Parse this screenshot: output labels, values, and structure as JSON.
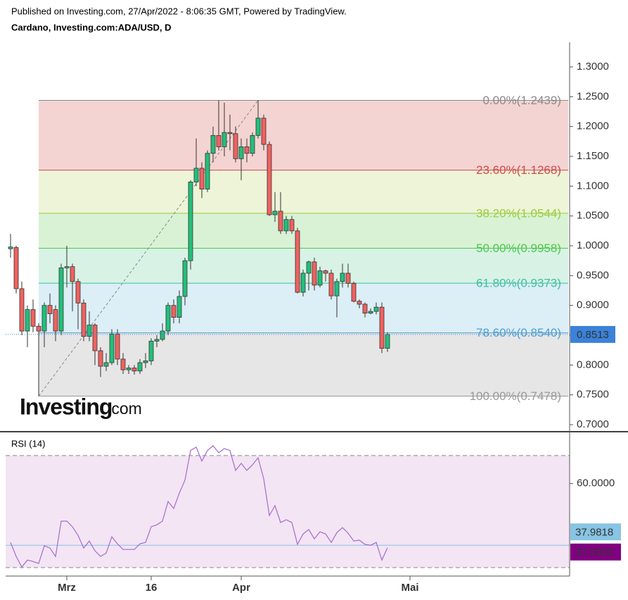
{
  "header": {
    "published": "Published on Investing.com, 27/Apr/2022 - 8:06:35 GMT, Powered by TradingView.",
    "symbol": "Cardano, Investing.com:ADA/USD, D"
  },
  "watermark": {
    "brand": "Investing",
    "suffix": ".com"
  },
  "chart_data": [
    {
      "type": "candlestick",
      "x": [
        "2022-02-19",
        "2022-02-20",
        "2022-02-21",
        "2022-02-22",
        "2022-02-23",
        "2022-02-24",
        "2022-02-25",
        "2022-02-26",
        "2022-02-27",
        "2022-02-28",
        "2022-03-01",
        "2022-03-02",
        "2022-03-03",
        "2022-03-04",
        "2022-03-05",
        "2022-03-06",
        "2022-03-07",
        "2022-03-08",
        "2022-03-09",
        "2022-03-10",
        "2022-03-11",
        "2022-03-12",
        "2022-03-13",
        "2022-03-14",
        "2022-03-15",
        "2022-03-16",
        "2022-03-17",
        "2022-03-18",
        "2022-03-19",
        "2022-03-20",
        "2022-03-21",
        "2022-03-22",
        "2022-03-23",
        "2022-03-24",
        "2022-03-25",
        "2022-03-26",
        "2022-03-27",
        "2022-03-28",
        "2022-03-29",
        "2022-03-30",
        "2022-03-31",
        "2022-04-01",
        "2022-04-02",
        "2022-04-03",
        "2022-04-04",
        "2022-04-05",
        "2022-04-06",
        "2022-04-07",
        "2022-04-08",
        "2022-04-09",
        "2022-04-10",
        "2022-04-11",
        "2022-04-12",
        "2022-04-13",
        "2022-04-14",
        "2022-04-15",
        "2022-04-16",
        "2022-04-17",
        "2022-04-18",
        "2022-04-19",
        "2022-04-20",
        "2022-04-21",
        "2022-04-22",
        "2022-04-23",
        "2022-04-24",
        "2022-04-25",
        "2022-04-26",
        "2022-04-27"
      ],
      "open": [
        0.995,
        0.997,
        0.928,
        0.857,
        0.893,
        0.865,
        0.857,
        0.9,
        0.893,
        0.857,
        0.963,
        0.965,
        0.94,
        0.904,
        0.848,
        0.867,
        0.824,
        0.798,
        0.804,
        0.852,
        0.81,
        0.792,
        0.795,
        0.79,
        0.804,
        0.807,
        0.84,
        0.843,
        0.857,
        0.9,
        0.88,
        0.915,
        0.975,
        1.107,
        1.13,
        1.095,
        1.155,
        1.185,
        1.166,
        1.19,
        1.188,
        1.146,
        1.166,
        1.155,
        1.185,
        1.214,
        1.17,
        1.052,
        1.058,
        1.025,
        1.044,
        1.025,
        0.922,
        0.954,
        0.973,
        0.934,
        0.958,
        0.954,
        0.916,
        0.94,
        0.954,
        0.937,
        0.907,
        0.902,
        0.887,
        0.89,
        0.897,
        0.828
      ],
      "high": [
        1.02,
        1.0,
        0.94,
        0.9,
        0.91,
        0.87,
        0.905,
        0.92,
        0.9,
        0.97,
        1.0,
        0.97,
        0.945,
        0.91,
        0.89,
        0.87,
        0.83,
        0.82,
        0.86,
        0.86,
        0.82,
        0.8,
        0.8,
        0.81,
        0.82,
        0.845,
        0.85,
        0.87,
        0.905,
        0.91,
        0.925,
        0.98,
        1.11,
        1.18,
        1.14,
        1.16,
        1.2,
        1.2439,
        1.24,
        1.22,
        1.2,
        1.18,
        1.18,
        1.19,
        1.2439,
        1.22,
        1.175,
        1.09,
        1.09,
        1.05,
        1.05,
        1.03,
        0.96,
        0.975,
        0.98,
        0.965,
        0.96,
        0.96,
        0.945,
        0.97,
        0.97,
        0.94,
        0.91,
        0.905,
        0.895,
        0.905,
        0.905,
        0.855
      ],
      "low": [
        0.98,
        0.92,
        0.85,
        0.83,
        0.855,
        0.7478,
        0.83,
        0.87,
        0.84,
        0.85,
        0.93,
        0.89,
        0.86,
        0.84,
        0.84,
        0.8,
        0.78,
        0.79,
        0.8,
        0.8,
        0.785,
        0.785,
        0.784,
        0.785,
        0.795,
        0.8,
        0.83,
        0.84,
        0.85,
        0.87,
        0.87,
        0.9,
        0.96,
        1.1,
        1.08,
        1.09,
        1.14,
        1.16,
        1.15,
        1.16,
        1.14,
        1.11,
        1.14,
        1.15,
        1.18,
        1.16,
        1.05,
        1.04,
        1.02,
        1.02,
        1.02,
        0.92,
        0.915,
        0.925,
        0.925,
        0.93,
        0.94,
        0.91,
        0.88,
        0.93,
        0.93,
        0.905,
        0.895,
        0.88,
        0.885,
        0.885,
        0.82,
        0.822
      ],
      "close": [
        0.998,
        0.928,
        0.857,
        0.893,
        0.865,
        0.857,
        0.9,
        0.886,
        0.857,
        0.963,
        0.965,
        0.94,
        0.904,
        0.848,
        0.867,
        0.824,
        0.798,
        0.804,
        0.852,
        0.81,
        0.792,
        0.795,
        0.79,
        0.804,
        0.807,
        0.84,
        0.843,
        0.857,
        0.9,
        0.88,
        0.915,
        0.975,
        1.107,
        1.13,
        1.095,
        1.155,
        1.185,
        1.166,
        1.19,
        1.188,
        1.146,
        1.166,
        1.155,
        1.185,
        1.214,
        1.17,
        1.052,
        1.058,
        1.025,
        1.044,
        1.025,
        0.922,
        0.954,
        0.973,
        0.934,
        0.958,
        0.954,
        0.916,
        0.94,
        0.954,
        0.937,
        0.907,
        0.902,
        0.887,
        0.89,
        0.897,
        0.828,
        0.8513
      ],
      "up_color": "#22c07a",
      "down_color": "#f0625f",
      "xlim": [
        "2022-02-18",
        "2022-05-29"
      ],
      "ylim": [
        0.6894,
        1.3413
      ],
      "yticks": [
        {
          "value": 0.7,
          "label": "0.7000"
        },
        {
          "value": 0.75,
          "label": "0.7500"
        },
        {
          "value": 0.8,
          "label": "0.8000"
        },
        {
          "value": 0.85,
          "label": "0.8500"
        },
        {
          "value": 0.9,
          "label": "0.9000"
        },
        {
          "value": 0.95,
          "label": "0.9500"
        },
        {
          "value": 1.0,
          "label": "1.0000"
        },
        {
          "value": 1.05,
          "label": "1.0500"
        },
        {
          "value": 1.1,
          "label": "1.1000"
        },
        {
          "value": 1.15,
          "label": "1.1500"
        },
        {
          "value": 1.2,
          "label": "1.2000"
        },
        {
          "value": 1.25,
          "label": "1.2500"
        },
        {
          "value": 1.3,
          "label": "1.3000"
        }
      ],
      "last_price": 0.8513,
      "last_price_color": "#3b82d8",
      "trendline": {
        "from": [
          "2022-02-24",
          0.7478
        ],
        "to": [
          "2022-04-04",
          1.2439
        ],
        "color": "#888888"
      },
      "fib_levels": [
        {
          "label": "0.00%(1.2439)",
          "value": 1.2439,
          "color": "#8a8a8a"
        },
        {
          "label": "23.60%(1.1268)",
          "value": 1.1268,
          "color": "#d24a4a",
          "fill": "#f4d4d2"
        },
        {
          "label": "38.20%(1.0544)",
          "value": 1.0544,
          "color": "#9ccc3c",
          "fill": "#eef4d8"
        },
        {
          "label": "50.00%(0.9958)",
          "value": 0.9958,
          "color": "#4cc94c",
          "fill": "#d9f2d5"
        },
        {
          "label": "61.80%(0.9373)",
          "value": 0.9373,
          "color": "#3fbf9f",
          "fill": "#d8f3e6"
        },
        {
          "label": "78.60%(0.8540)",
          "value": 0.854,
          "color": "#4f9fd0",
          "fill": "#dceef6"
        },
        {
          "label": "100.00%(0.7478)",
          "value": 0.7478,
          "color": "#999999",
          "fill": "#e6e6e6"
        }
      ]
    },
    {
      "type": "line",
      "title": "RSI (14)",
      "x": [
        "2022-02-19",
        "2022-02-20",
        "2022-02-21",
        "2022-02-22",
        "2022-02-23",
        "2022-02-24",
        "2022-02-25",
        "2022-02-26",
        "2022-02-27",
        "2022-02-28",
        "2022-03-01",
        "2022-03-02",
        "2022-03-03",
        "2022-03-04",
        "2022-03-05",
        "2022-03-06",
        "2022-03-07",
        "2022-03-08",
        "2022-03-09",
        "2022-03-10",
        "2022-03-11",
        "2022-03-12",
        "2022-03-13",
        "2022-03-14",
        "2022-03-15",
        "2022-03-16",
        "2022-03-17",
        "2022-03-18",
        "2022-03-19",
        "2022-03-20",
        "2022-03-21",
        "2022-03-22",
        "2022-03-23",
        "2022-03-24",
        "2022-03-25",
        "2022-03-26",
        "2022-03-27",
        "2022-03-28",
        "2022-03-29",
        "2022-03-30",
        "2022-03-31",
        "2022-04-01",
        "2022-04-02",
        "2022-04-03",
        "2022-04-04",
        "2022-04-05",
        "2022-04-06",
        "2022-04-07",
        "2022-04-08",
        "2022-04-09",
        "2022-04-10",
        "2022-04-11",
        "2022-04-12",
        "2022-04-13",
        "2022-04-14",
        "2022-04-15",
        "2022-04-16",
        "2022-04-17",
        "2022-04-18",
        "2022-04-19",
        "2022-04-20",
        "2022-04-21",
        "2022-04-22",
        "2022-04-23",
        "2022-04-24",
        "2022-04-25",
        "2022-04-26",
        "2022-04-27"
      ],
      "values": [
        39,
        34,
        30.2,
        32.7,
        32.2,
        31.5,
        37.8,
        37,
        34,
        46.6,
        46.6,
        44.6,
        41.5,
        37,
        39.5,
        36,
        34,
        35.2,
        41,
        38.5,
        36.5,
        36.5,
        36.5,
        38.5,
        39,
        44.6,
        45.3,
        46.6,
        53.6,
        51.1,
        56.6,
        61.2,
        71.8,
        73,
        68,
        71.8,
        73.5,
        71,
        72.5,
        71.8,
        64.7,
        67.2,
        64.7,
        66.7,
        69.2,
        61.7,
        48.6,
        52.1,
        46.1,
        47.1,
        46.1,
        38.3,
        42,
        43.6,
        40.3,
        42.8,
        42,
        39,
        42.5,
        44.3,
        42.3,
        39.5,
        39.8,
        38.3,
        38,
        39,
        32.7,
        37.0832
      ],
      "color": "#a46bd1",
      "last_color": "#800080",
      "ma_value": 37.9818,
      "ma_color": "#88c4e4",
      "bands": [
        30,
        70
      ],
      "band_fill": "#f3e5f3",
      "xlim": [
        "2022-02-18",
        "2022-05-29"
      ],
      "ylim": [
        27,
        78
      ],
      "yticks": [
        {
          "value": 60,
          "label": "60.0000"
        }
      ],
      "xticks": [
        {
          "value": "2022-03-01",
          "label": "Mrz"
        },
        {
          "value": "2022-03-16",
          "label": "16"
        },
        {
          "value": "2022-04-01",
          "label": "Apr"
        },
        {
          "value": "2022-05-01",
          "label": "Mai"
        }
      ]
    }
  ]
}
